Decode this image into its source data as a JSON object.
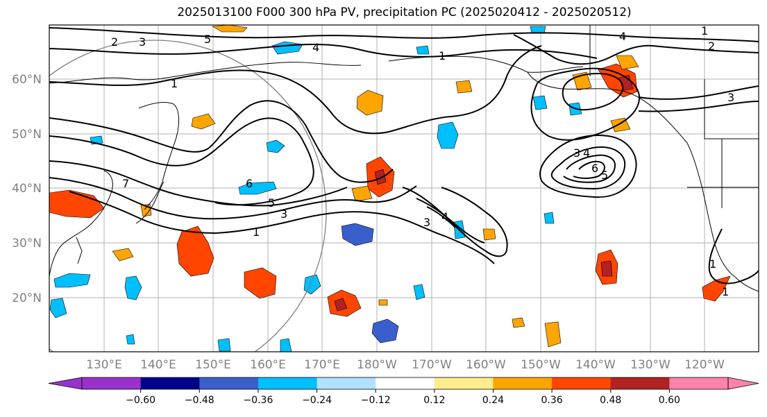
{
  "title": "2025013100 F000 300 hPa PV, precipitation PC (2025020412 - 2025020512)",
  "map": {
    "lon_labels": [
      "130°E",
      "140°E",
      "150°E",
      "160°E",
      "170°E",
      "180°W",
      "170°W",
      "160°W",
      "150°W",
      "140°W",
      "130°W",
      "120°W"
    ],
    "lat_labels": [
      "60°N",
      "50°N",
      "40°N",
      "30°N",
      "20°N"
    ]
  },
  "contour_labels": [
    {
      "text": "2"
    },
    {
      "text": "3"
    },
    {
      "text": "5"
    },
    {
      "text": "4"
    },
    {
      "text": "1"
    },
    {
      "text": "1"
    },
    {
      "text": "4"
    },
    {
      "text": "1"
    },
    {
      "text": "1"
    },
    {
      "text": "2"
    },
    {
      "text": "3"
    },
    {
      "text": "3"
    },
    {
      "text": "4"
    },
    {
      "text": "6"
    },
    {
      "text": "5"
    },
    {
      "text": "7"
    },
    {
      "text": "6"
    },
    {
      "text": "5"
    },
    {
      "text": "3"
    },
    {
      "text": "1"
    },
    {
      "text": "3"
    },
    {
      "text": "4"
    },
    {
      "text": "1"
    }
  ],
  "colorbar": {
    "colors": [
      "#9932cc",
      "#00008b",
      "#3a5fcd",
      "#00bfff",
      "#b0e2ff",
      "#ffffff",
      "#ffec8b",
      "#ffa500",
      "#ff4500",
      "#b22222",
      "#ff82ab"
    ],
    "extend_min_color": "#9932cc",
    "extend_max_color": "#ff82ab",
    "tick_labels": [
      "−0.60",
      "−0.48",
      "−0.36",
      "−0.24",
      "−0.12",
      "0.12",
      "0.24",
      "0.36",
      "0.48",
      "0.60"
    ]
  }
}
